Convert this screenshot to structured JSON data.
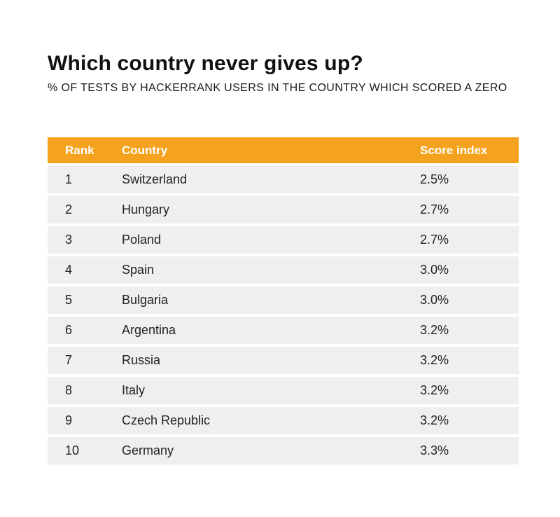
{
  "chart_data": {
    "type": "table",
    "title": "Which country never gives up?",
    "subtitle": "% OF TESTS BY HACKERRANK USERS IN THE COUNTRY WHICH SCORED A ZERO",
    "columns": [
      "Rank",
      "Country",
      "Score index"
    ],
    "rows": [
      {
        "rank": "1",
        "country": "Switzerland",
        "score": "2.5%"
      },
      {
        "rank": "2",
        "country": "Hungary",
        "score": "2.7%"
      },
      {
        "rank": "3",
        "country": "Poland",
        "score": "2.7%"
      },
      {
        "rank": "4",
        "country": "Spain",
        "score": "3.0%"
      },
      {
        "rank": "5",
        "country": "Bulgaria",
        "score": "3.0%"
      },
      {
        "rank": "6",
        "country": "Argentina",
        "score": "3.2%"
      },
      {
        "rank": "7",
        "country": "Russia",
        "score": "3.2%"
      },
      {
        "rank": "8",
        "country": "Italy",
        "score": "3.2%"
      },
      {
        "rank": "9",
        "country": "Czech Republic",
        "score": "3.2%"
      },
      {
        "rank": "10",
        "country": "Germany",
        "score": "3.3%"
      }
    ]
  },
  "colors": {
    "header_bg": "#f5a21f",
    "header_text": "#ffffff",
    "row_bg": "#eeefee"
  }
}
